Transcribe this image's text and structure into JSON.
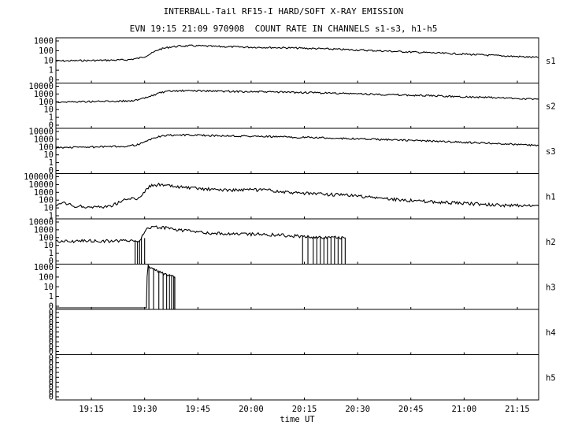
{
  "chart_data": {
    "type": "line",
    "title": "INTERBALL-Tail RF15-I HARD/SOFT X-RAY EMISSION",
    "subtitle": "EVN 19:15 21:09 970908  COUNT RATE IN CHANNELS s1-s3, h1-h5",
    "xlabel": "time UT",
    "x_ticks": [
      "19:15",
      "19:30",
      "19:45",
      "20:00",
      "20:15",
      "20:30",
      "20:45",
      "21:00",
      "21:15"
    ],
    "x_tick_minutes": [
      1155,
      1170,
      1185,
      1200,
      1215,
      1230,
      1245,
      1260,
      1275
    ],
    "xlim_minutes": [
      1145,
      1281
    ],
    "y_scale": "log",
    "panels": [
      {
        "name": "s1",
        "y_ticks": [
          "1000",
          "100",
          "10",
          "1",
          "0"
        ],
        "ylim": [
          0.1,
          3000
        ],
        "points": [
          [
            1145,
            15
          ],
          [
            1150,
            16
          ],
          [
            1155,
            17
          ],
          [
            1160,
            18
          ],
          [
            1165,
            20
          ],
          [
            1168,
            28
          ],
          [
            1170,
            45
          ],
          [
            1172,
            100
          ],
          [
            1174,
            250
          ],
          [
            1177,
            450
          ],
          [
            1180,
            580
          ],
          [
            1183,
            620
          ],
          [
            1186,
            600
          ],
          [
            1190,
            520
          ],
          [
            1200,
            440
          ],
          [
            1210,
            380
          ],
          [
            1220,
            300
          ],
          [
            1230,
            220
          ],
          [
            1240,
            160
          ],
          [
            1250,
            115
          ],
          [
            1260,
            80
          ],
          [
            1270,
            55
          ],
          [
            1281,
            35
          ]
        ]
      },
      {
        "name": "s2",
        "y_ticks": [
          "10000",
          "1000",
          "100",
          "10",
          "1",
          "0"
        ],
        "ylim": [
          0.1,
          20000
        ],
        "points": [
          [
            1145,
            130
          ],
          [
            1150,
            140
          ],
          [
            1155,
            150
          ],
          [
            1160,
            160
          ],
          [
            1165,
            175
          ],
          [
            1168,
            230
          ],
          [
            1170,
            380
          ],
          [
            1172,
            800
          ],
          [
            1174,
            1800
          ],
          [
            1177,
            2800
          ],
          [
            1180,
            3300
          ],
          [
            1183,
            3400
          ],
          [
            1186,
            3300
          ],
          [
            1190,
            3000
          ],
          [
            1200,
            2600
          ],
          [
            1210,
            2200
          ],
          [
            1220,
            1800
          ],
          [
            1230,
            1400
          ],
          [
            1240,
            1050
          ],
          [
            1250,
            800
          ],
          [
            1260,
            600
          ],
          [
            1270,
            430
          ],
          [
            1281,
            290
          ]
        ]
      },
      {
        "name": "s3",
        "y_ticks": [
          "10000",
          "1000",
          "100",
          "10",
          "1",
          "0"
        ],
        "ylim": [
          0.1,
          20000
        ],
        "points": [
          [
            1145,
            110
          ],
          [
            1150,
            130
          ],
          [
            1155,
            140
          ],
          [
            1160,
            150
          ],
          [
            1165,
            180
          ],
          [
            1168,
            280
          ],
          [
            1170,
            550
          ],
          [
            1172,
            1500
          ],
          [
            1174,
            3000
          ],
          [
            1177,
            4200
          ],
          [
            1180,
            4600
          ],
          [
            1183,
            4500
          ],
          [
            1186,
            4200
          ],
          [
            1190,
            3800
          ],
          [
            1200,
            3200
          ],
          [
            1210,
            2600
          ],
          [
            1220,
            2000
          ],
          [
            1230,
            1500
          ],
          [
            1240,
            1100
          ],
          [
            1250,
            800
          ],
          [
            1260,
            550
          ],
          [
            1270,
            380
          ],
          [
            1281,
            220
          ]
        ]
      },
      {
        "name": "h1",
        "y_ticks": [
          "100000",
          "10000",
          "1000",
          "100",
          "10",
          "1"
        ],
        "ylim": [
          0.5,
          200000
        ],
        "points": [
          [
            1145,
            12
          ],
          [
            1146,
            25
          ],
          [
            1147,
            40
          ],
          [
            1148,
            30
          ],
          [
            1150,
            15
          ],
          [
            1155,
            12
          ],
          [
            1160,
            14
          ],
          [
            1162,
            35
          ],
          [
            1164,
            90
          ],
          [
            1166,
            160
          ],
          [
            1168,
            140
          ],
          [
            1169,
            450
          ],
          [
            1170,
            1400
          ],
          [
            1171,
            4500
          ],
          [
            1172,
            9500
          ],
          [
            1174,
            10000
          ],
          [
            1176,
            8000
          ],
          [
            1180,
            5000
          ],
          [
            1185,
            3200
          ],
          [
            1190,
            2400
          ],
          [
            1195,
            2100
          ],
          [
            1200,
            2200
          ],
          [
            1205,
            1800
          ],
          [
            1210,
            1000
          ],
          [
            1220,
            600
          ],
          [
            1230,
            350
          ],
          [
            1240,
            120
          ],
          [
            1250,
            60
          ],
          [
            1260,
            35
          ],
          [
            1270,
            20
          ],
          [
            1281,
            16
          ]
        ]
      },
      {
        "name": "h2",
        "y_ticks": [
          "10000",
          "1000",
          "100",
          "10",
          "1",
          "0"
        ],
        "ylim": [
          0.1,
          20000
        ],
        "points": [
          [
            1145,
            50
          ],
          [
            1167,
            50
          ],
          [
            1168,
            55
          ],
          [
            1169,
            120
          ],
          [
            1170,
            700
          ],
          [
            1171,
            2500
          ],
          [
            1172,
            3200
          ],
          [
            1175,
            2600
          ],
          [
            1180,
            1200
          ],
          [
            1185,
            700
          ],
          [
            1190,
            450
          ],
          [
            1195,
            420
          ],
          [
            1200,
            380
          ],
          [
            1205,
            330
          ],
          [
            1210,
            250
          ],
          [
            1215,
            180
          ],
          [
            1220,
            150
          ],
          [
            1225,
            130
          ],
          [
            1226.5,
            120
          ]
        ],
        "dropouts": [
          1167.3,
          1168,
          1168.6,
          1169.1,
          1170,
          1214.5,
          1216,
          1217.5,
          1218.5,
          1219.5,
          1220.5,
          1221.5,
          1222.5,
          1223.5,
          1224.5,
          1225.5
        ]
      },
      {
        "name": "h3",
        "y_ticks": [
          "1000",
          "100",
          "10",
          "1",
          "0"
        ],
        "ylim": [
          0.1,
          1000
        ],
        "points": [
          [
            1145,
            0.1
          ],
          [
            1170.5,
            0.1
          ],
          [
            1170.7,
            100
          ],
          [
            1171,
            850
          ],
          [
            1172,
            500
          ],
          [
            1173,
            350
          ],
          [
            1174,
            250
          ],
          [
            1175,
            200
          ],
          [
            1176,
            160
          ],
          [
            1177,
            120
          ],
          [
            1178,
            100
          ],
          [
            1178.5,
            90
          ]
        ],
        "dropouts": [
          1171.2,
          1172.5,
          1174,
          1175.2,
          1176.2,
          1177,
          1177.6,
          1178.2
        ]
      },
      {
        "name": "h4",
        "y_ticks": [
          "0",
          "0",
          "0",
          "0",
          "0",
          "0",
          "0",
          "0",
          "0"
        ],
        "ylim": [
          0,
          1
        ],
        "points": []
      },
      {
        "name": "h5",
        "y_ticks": [
          "0",
          "0",
          "0",
          "0",
          "0",
          "0",
          "0",
          "0",
          "0"
        ],
        "ylim": [
          0,
          1
        ],
        "points": []
      }
    ]
  }
}
